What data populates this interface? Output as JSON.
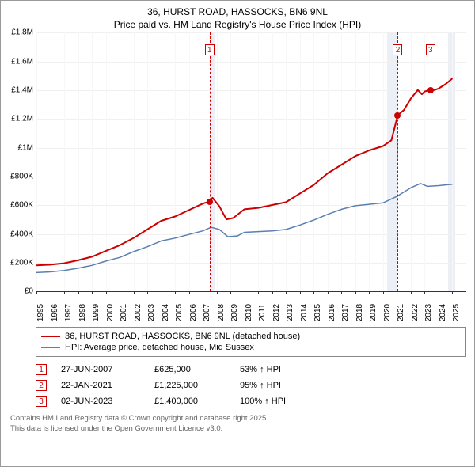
{
  "title_line1": "36, HURST ROAD, HASSOCKS, BN6 9NL",
  "title_line2": "Price paid vs. HM Land Registry's House Price Index (HPI)",
  "chart": {
    "type": "line",
    "x_range_years": [
      1995,
      2026
    ],
    "ylim": [
      0,
      1800000
    ],
    "ytick_step": 200000,
    "y_ticks": [
      "£0",
      "£200K",
      "£400K",
      "£600K",
      "£800K",
      "£1M",
      "£1.2M",
      "£1.4M",
      "£1.6M",
      "£1.8M"
    ],
    "x_ticks": [
      "1995",
      "1996",
      "1997",
      "1998",
      "1999",
      "2000",
      "2001",
      "2002",
      "2003",
      "2004",
      "2005",
      "2006",
      "2007",
      "2008",
      "2009",
      "2010",
      "2011",
      "2012",
      "2013",
      "2014",
      "2015",
      "2016",
      "2017",
      "2018",
      "2019",
      "2020",
      "2021",
      "2022",
      "2023",
      "2024",
      "2025"
    ],
    "background_color": "#ffffff",
    "grid_color": "#f0f0f0",
    "shade_color": "#eceff5",
    "series": [
      {
        "name": "price_paid",
        "label": "36, HURST ROAD, HASSOCKS, BN6 9NL (detached house)",
        "color": "#cc0000",
        "line_width": 2,
        "data": [
          [
            1995.0,
            180000
          ],
          [
            1996.0,
            185000
          ],
          [
            1997.0,
            195000
          ],
          [
            1998.0,
            215000
          ],
          [
            1999.0,
            240000
          ],
          [
            2000.0,
            280000
          ],
          [
            2001.0,
            320000
          ],
          [
            2002.0,
            370000
          ],
          [
            2003.0,
            430000
          ],
          [
            2004.0,
            490000
          ],
          [
            2005.0,
            520000
          ],
          [
            2006.0,
            565000
          ],
          [
            2007.0,
            610000
          ],
          [
            2007.49,
            625000
          ],
          [
            2007.7,
            650000
          ],
          [
            2008.2,
            590000
          ],
          [
            2008.7,
            500000
          ],
          [
            2009.2,
            510000
          ],
          [
            2010.0,
            570000
          ],
          [
            2011.0,
            580000
          ],
          [
            2012.0,
            600000
          ],
          [
            2013.0,
            620000
          ],
          [
            2014.0,
            680000
          ],
          [
            2015.0,
            740000
          ],
          [
            2016.0,
            820000
          ],
          [
            2017.0,
            880000
          ],
          [
            2018.0,
            940000
          ],
          [
            2019.0,
            980000
          ],
          [
            2020.0,
            1010000
          ],
          [
            2020.6,
            1050000
          ],
          [
            2021.06,
            1225000
          ],
          [
            2021.5,
            1260000
          ],
          [
            2022.0,
            1340000
          ],
          [
            2022.5,
            1400000
          ],
          [
            2022.8,
            1370000
          ],
          [
            2023.0,
            1390000
          ],
          [
            2023.42,
            1400000
          ],
          [
            2023.7,
            1400000
          ],
          [
            2024.0,
            1410000
          ],
          [
            2024.5,
            1440000
          ],
          [
            2025.0,
            1480000
          ]
        ]
      },
      {
        "name": "hpi",
        "label": "HPI: Average price, detached house, Mid Sussex",
        "color": "#5b7fb0",
        "line_width": 1.5,
        "data": [
          [
            1995.0,
            130000
          ],
          [
            1996.0,
            135000
          ],
          [
            1997.0,
            145000
          ],
          [
            1998.0,
            160000
          ],
          [
            1999.0,
            180000
          ],
          [
            2000.0,
            210000
          ],
          [
            2001.0,
            235000
          ],
          [
            2002.0,
            275000
          ],
          [
            2003.0,
            310000
          ],
          [
            2004.0,
            350000
          ],
          [
            2005.0,
            370000
          ],
          [
            2006.0,
            395000
          ],
          [
            2007.0,
            420000
          ],
          [
            2007.6,
            445000
          ],
          [
            2008.2,
            430000
          ],
          [
            2008.8,
            380000
          ],
          [
            2009.5,
            385000
          ],
          [
            2010.0,
            410000
          ],
          [
            2011.0,
            415000
          ],
          [
            2012.0,
            420000
          ],
          [
            2013.0,
            430000
          ],
          [
            2014.0,
            460000
          ],
          [
            2015.0,
            495000
          ],
          [
            2016.0,
            535000
          ],
          [
            2017.0,
            570000
          ],
          [
            2018.0,
            595000
          ],
          [
            2019.0,
            605000
          ],
          [
            2020.0,
            615000
          ],
          [
            2021.0,
            660000
          ],
          [
            2022.0,
            720000
          ],
          [
            2022.7,
            750000
          ],
          [
            2023.2,
            730000
          ],
          [
            2024.0,
            735000
          ],
          [
            2025.0,
            745000
          ]
        ]
      }
    ],
    "sale_events": [
      {
        "num": "1",
        "year": 2007.49,
        "price": 625000,
        "marker_color": "#cc0000"
      },
      {
        "num": "2",
        "year": 2021.06,
        "price": 1225000,
        "marker_color": "#cc0000"
      },
      {
        "num": "3",
        "year": 2023.42,
        "price": 1400000,
        "marker_color": "#cc0000"
      }
    ],
    "shade_bands": [
      {
        "start": 2007.49,
        "end": 2007.9
      },
      {
        "start": 2020.3,
        "end": 2021.06
      },
      {
        "start": 2024.7,
        "end": 2025.2
      }
    ]
  },
  "legend": {
    "items": [
      {
        "color": "#cc0000",
        "label": "36, HURST ROAD, HASSOCKS, BN6 9NL (detached house)"
      },
      {
        "color": "#5b7fb0",
        "label": "HPI: Average price, detached house, Mid Sussex"
      }
    ]
  },
  "sales_table": [
    {
      "num": "1",
      "date": "27-JUN-2007",
      "price": "£625,000",
      "delta": "53% ↑ HPI"
    },
    {
      "num": "2",
      "date": "22-JAN-2021",
      "price": "£1,225,000",
      "delta": "95% ↑ HPI"
    },
    {
      "num": "3",
      "date": "02-JUN-2023",
      "price": "£1,400,000",
      "delta": "100% ↑ HPI"
    }
  ],
  "footer_line1": "Contains HM Land Registry data © Crown copyright and database right 2025.",
  "footer_line2": "This data is licensed under the Open Government Licence v3.0."
}
